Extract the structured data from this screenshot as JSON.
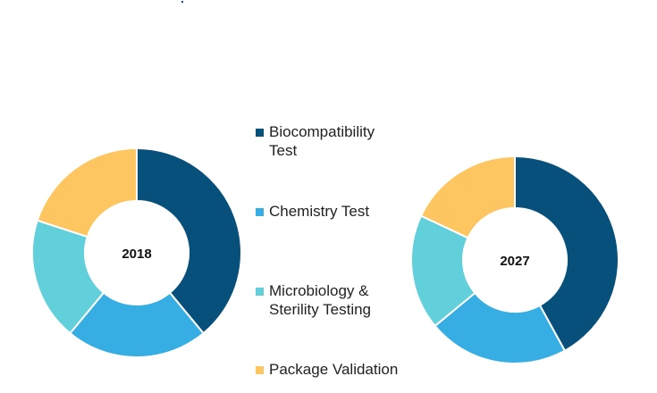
{
  "chart_data": [
    {
      "type": "donut",
      "center_label": "2018",
      "categories": [
        "Biocompatibility Test",
        "Chemistry Test",
        "Microbiology & Sterility Testing",
        "Package Validation"
      ],
      "values": [
        39,
        22,
        19,
        20
      ],
      "colors": [
        "#07507c",
        "#36aee4",
        "#62d0da",
        "#fec660"
      ]
    },
    {
      "type": "donut",
      "center_label": "2027",
      "categories": [
        "Biocompatibility Test",
        "Chemistry Test",
        "Microbiology & Sterility Testing",
        "Package Validation"
      ],
      "values": [
        42,
        22,
        18,
        18
      ],
      "colors": [
        "#07507c",
        "#36aee4",
        "#62d0da",
        "#fec660"
      ]
    }
  ],
  "legend": [
    {
      "label": "Biocompatibility\nTest",
      "color": "#07507c"
    },
    {
      "label": "Chemistry Test",
      "color": "#36aee4"
    },
    {
      "label": "Microbiology &\nSterility Testing",
      "color": "#62d0da"
    },
    {
      "label": "Package Validation",
      "color": "#fec660"
    }
  ]
}
